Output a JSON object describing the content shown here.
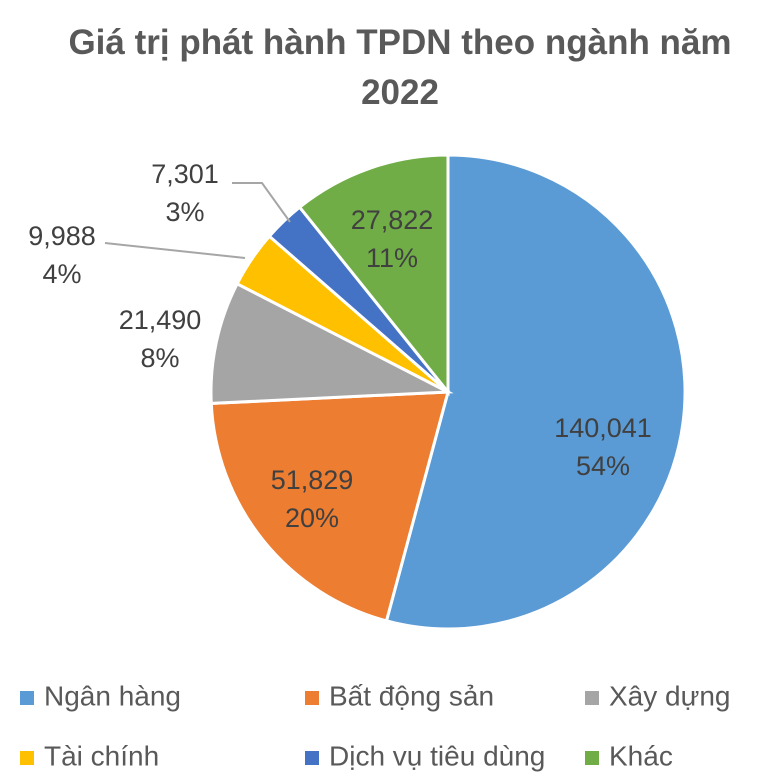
{
  "chart_data": {
    "type": "pie",
    "title": "Giá trị phát hành TPDN theo ngành năm 2022",
    "categories": [
      "Ngân hàng",
      "Bất động sản",
      "Xây dựng",
      "Tài chính",
      "Dịch vụ tiêu dùng",
      "Khác"
    ],
    "values": [
      140041,
      51829,
      21490,
      9988,
      7301,
      27822
    ],
    "value_labels": [
      "140,041",
      "51,829",
      "21,490",
      "9,988",
      "7,301",
      "27,822"
    ],
    "percent_labels": [
      "54%",
      "20%",
      "8%",
      "4%",
      "3%",
      "11%"
    ],
    "colors": [
      "#5b9bd5",
      "#ed7d31",
      "#a5a5a5",
      "#ffc000",
      "#4472c4",
      "#70ad47"
    ],
    "legend": "bottom"
  }
}
